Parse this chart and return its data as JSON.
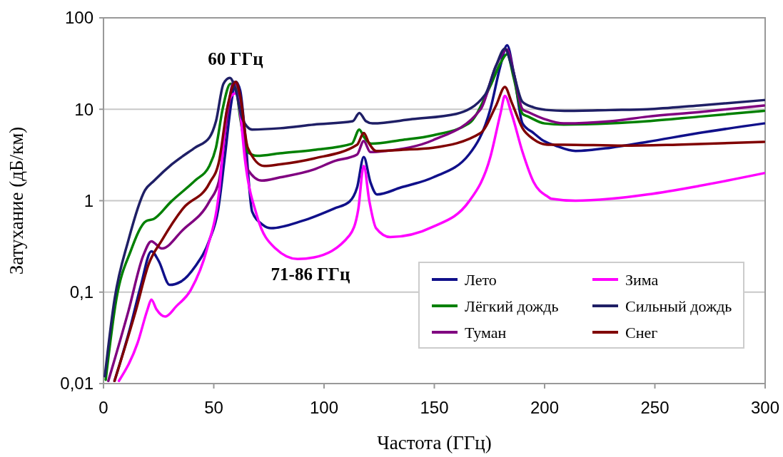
{
  "chart_data": {
    "type": "line",
    "xlabel": "Частота (ГГц)",
    "ylabel": "Затухание (дБ/км)",
    "log": "y",
    "grid": "y",
    "legend": "bottom right",
    "xlim": [
      0,
      300
    ],
    "xticks": [
      0,
      50,
      100,
      150,
      200,
      250,
      300
    ],
    "ylim": [
      0.01,
      100
    ],
    "yticks": [
      {
        "value": 0.01,
        "label": "0,01"
      },
      {
        "value": 0.1,
        "label": "0,1"
      },
      1,
      10,
      100
    ],
    "annotations": [
      "60 ГГц",
      "71-86 ГГц"
    ],
    "series": [
      {
        "name": "Лето",
        "color": "#10108a",
        "x": [
          5,
          12,
          17,
          21.7,
          25,
          30,
          35,
          41.5,
          48,
          52,
          55,
          58,
          60,
          62,
          64,
          67.4,
          72,
          76,
          90,
          104.5,
          111.6,
          115,
          118,
          121,
          124,
          135,
          149.5,
          165.7,
          175.4,
          180,
          183,
          186,
          190,
          195,
          199,
          205,
          214,
          230,
          246.6,
          270,
          299.5
        ],
        "values": [
          0.0107,
          0.04,
          0.12,
          0.28,
          0.22,
          0.12,
          0.13,
          0.19,
          0.37,
          0.8,
          3,
          12,
          20,
          16,
          6,
          0.76,
          0.55,
          0.5,
          0.6,
          0.82,
          0.98,
          1.4,
          3.0,
          1.6,
          1.17,
          1.4,
          1.8,
          3.2,
          10,
          30,
          50,
          25,
          7,
          5.5,
          4.6,
          4,
          3.5,
          3.8,
          4.4,
          5.5,
          7
        ]
      },
      {
        "name": "Лёгкий дождь",
        "color": "#008000",
        "x": [
          1,
          5.8,
          12.3,
          19.4,
          22.7,
          30.7,
          41.5,
          48,
          51,
          54,
          57.6,
          60,
          62,
          65.4,
          69.6,
          80,
          95.5,
          112.6,
          116,
          118,
          121.4,
          135,
          149.5,
          165.7,
          175.4,
          180,
          183,
          186,
          190,
          192.6,
          200,
          208.7,
          230,
          246.6,
          270,
          299.5
        ],
        "values": [
          0.011,
          0.083,
          0.28,
          0.6,
          0.63,
          0.98,
          1.66,
          2.4,
          3.8,
          10,
          19,
          17,
          8,
          3.4,
          3.1,
          3.3,
          3.6,
          4.2,
          6.0,
          5,
          4.2,
          4.6,
          5.2,
          7,
          18,
          32,
          40,
          22,
          8.9,
          8.3,
          7,
          6.8,
          7,
          7.4,
          8.3,
          9.6
        ]
      },
      {
        "name": "Туман",
        "color": "#800080",
        "x": [
          2.2,
          11.3,
          18,
          21.7,
          26.5,
          36,
          48,
          52.4,
          56,
          59,
          61,
          63,
          65.4,
          71.8,
          80,
          95.5,
          104.5,
          115,
          118,
          121,
          127.8,
          149.5,
          171,
          178,
          183,
          186,
          190,
          192.6,
          200,
          208.7,
          230,
          246.6,
          270,
          299.5
        ],
        "values": [
          0.0107,
          0.062,
          0.25,
          0.36,
          0.3,
          0.48,
          0.98,
          1.66,
          8,
          20,
          17,
          6,
          2.2,
          1.66,
          1.8,
          2.2,
          2.7,
          3.2,
          4.5,
          3.4,
          3.5,
          4.6,
          10,
          30,
          45,
          25,
          10,
          9.3,
          7.8,
          7,
          7.4,
          8.3,
          9.3,
          11
        ]
      },
      {
        "name": "Зима",
        "color": "#ff00ff",
        "x": [
          7,
          15.5,
          20,
          21.7,
          24,
          28,
          33,
          39.5,
          47,
          52.4,
          55.7,
          58,
          60,
          62,
          64,
          69.6,
          78,
          88,
          95.5,
          111.6,
          115.5,
          118,
          120.5,
          123.6,
          130,
          149.5,
          165.7,
          175.4,
          180,
          182,
          185,
          190,
          195,
          201.6,
          203,
          214,
          230,
          246.6,
          270,
          299.5
        ],
        "values": [
          0.0107,
          0.028,
          0.065,
          0.083,
          0.065,
          0.054,
          0.07,
          0.105,
          0.3,
          1.24,
          8.9,
          14,
          15,
          9,
          3,
          0.68,
          0.3,
          0.23,
          0.24,
          0.42,
          0.8,
          2.4,
          1.0,
          0.5,
          0.4,
          0.52,
          0.98,
          3.0,
          9,
          14,
          9,
          3.4,
          1.6,
          1.1,
          1.05,
          1.0,
          1.05,
          1.17,
          1.45,
          2.0
        ]
      },
      {
        "name": "Сильный дождь",
        "color": "#1f1f66",
        "x": [
          0.6,
          5,
          11.3,
          18.8,
          23,
          31,
          41.5,
          48,
          51,
          54.4,
          57.3,
          60,
          63,
          67.4,
          80,
          95.5,
          113,
          116,
          119,
          122,
          140,
          160,
          173,
          178,
          182,
          185,
          190,
          195,
          201.6,
          209,
          230,
          246.6,
          270,
          299.5
        ],
        "values": [
          0.012,
          0.083,
          0.37,
          1.3,
          1.66,
          2.5,
          3.8,
          4.9,
          7.4,
          19,
          22,
          16,
          7.8,
          6.0,
          6.2,
          6.8,
          7.4,
          9.1,
          7.4,
          7.0,
          7.8,
          8.9,
          14.4,
          30,
          46,
          30,
          12,
          10.5,
          9.8,
          9.6,
          9.8,
          10,
          11,
          12.6
        ]
      },
      {
        "name": "Снег",
        "color": "#800000",
        "x": [
          5,
          14.6,
          20.4,
          26.5,
          36,
          48,
          52.4,
          56,
          60,
          62,
          65.4,
          72.8,
          80,
          95.5,
          115,
          118,
          120.5,
          123.6,
          135,
          149.5,
          171,
          178,
          182,
          185,
          190,
          195,
          201.6,
          208.7,
          235.6,
          260,
          299.5
        ],
        "values": [
          0.0107,
          0.062,
          0.2,
          0.37,
          0.82,
          1.55,
          2.7,
          10,
          20,
          14,
          3.8,
          2.4,
          2.5,
          2.9,
          4.1,
          5.5,
          4.2,
          3.5,
          3.6,
          3.8,
          5.5,
          11,
          17.5,
          12,
          6.2,
          4.7,
          4.1,
          4.1,
          4.0,
          4.1,
          4.4
        ]
      }
    ]
  }
}
